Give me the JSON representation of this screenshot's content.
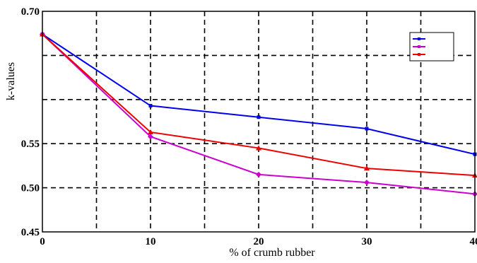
{
  "chart_data": {
    "type": "line",
    "title": "",
    "xlabel": "% of crumb rubber",
    "ylabel": "k-values",
    "x": [
      0,
      10,
      20,
      30,
      40
    ],
    "xlim": [
      0,
      40
    ],
    "ylim": [
      0.45,
      0.7
    ],
    "x_ticks": [
      0,
      10,
      20,
      30,
      40
    ],
    "x_tick_labels": [
      "0",
      "10",
      "20",
      "30",
      "40"
    ],
    "y_ticks": [
      0.45,
      0.5,
      0.55,
      0.6,
      0.65,
      0.7
    ],
    "y_tick_labels": [
      "0.45",
      "0.50",
      "0.55",
      "",
      "",
      "0.70"
    ],
    "grid": true,
    "legend_position": "top-right",
    "series": [
      {
        "name": "",
        "color": "#0000ee",
        "marker": "square",
        "values": [
          0.674,
          0.593,
          0.58,
          0.567,
          0.538
        ]
      },
      {
        "name": "",
        "color": "#cc00cc",
        "marker": "diamond",
        "values": [
          0.674,
          0.558,
          0.515,
          0.506,
          0.493
        ]
      },
      {
        "name": "",
        "color": "#ee0000",
        "marker": "triangle",
        "values": [
          0.674,
          0.563,
          0.545,
          0.522,
          0.514
        ]
      }
    ]
  }
}
